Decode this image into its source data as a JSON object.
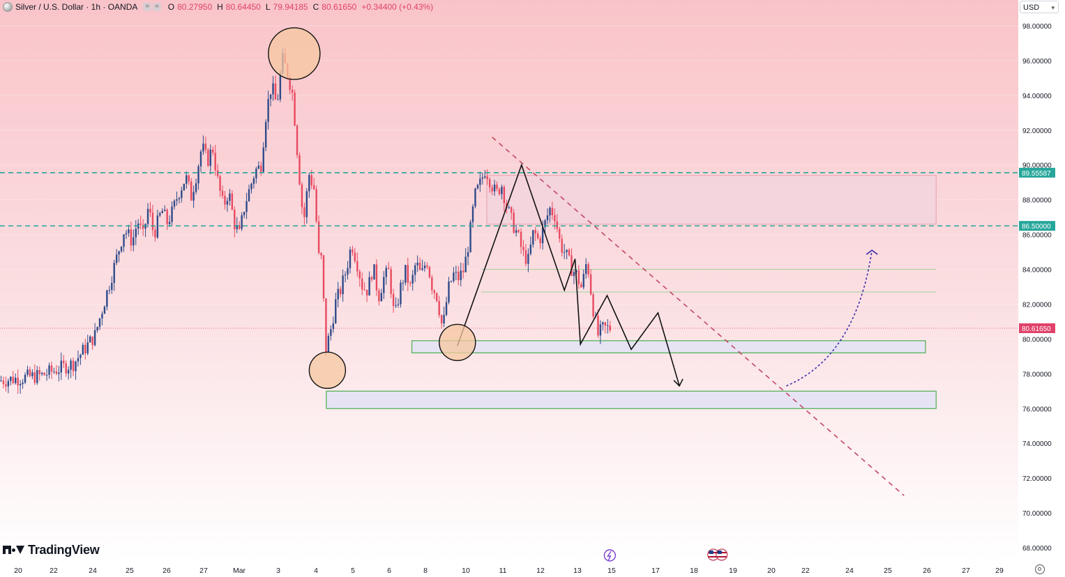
{
  "header": {
    "symbol": "Silver / U.S. Dollar · 1h · OANDA",
    "pill_a": "=",
    "pill_b": "≈",
    "open_label": "O",
    "open": "80.27950",
    "high_label": "H",
    "high": "80.64450",
    "low_label": "L",
    "low": "79.94185",
    "close_label": "C",
    "close": "80.61650",
    "change": "+0.34400 (+0.43%)"
  },
  "currency": "USD",
  "brand": "TradingView",
  "colors": {
    "candle_body": "#e8495f",
    "dash_level": "#26a69a",
    "trendline": "#c24865",
    "zone_stroke": "#4caf50",
    "arrow": "#3b2ca8",
    "circle_fill": "#f6c7a0"
  },
  "chart_data": {
    "type": "candlestick",
    "title": "Silver / U.S. Dollar · 1h · OANDA",
    "ylim": [
      67.5,
      99
    ],
    "yticks": [
      "98.00000",
      "96.00000",
      "94.00000",
      "92.00000",
      "90.00000",
      "88.00000",
      "86.00000",
      "84.00000",
      "82.00000",
      "80.00000",
      "78.00000",
      "76.00000",
      "74.00000",
      "72.00000",
      "70.00000",
      "68.00000"
    ],
    "x_labels": [
      "20",
      "22",
      "24",
      "25",
      "26",
      "27",
      "Mar",
      "3",
      "4",
      "5",
      "6",
      "8",
      "10",
      "11",
      "12",
      "13",
      "15",
      "17",
      "18",
      "19",
      "20",
      "22",
      "24",
      "25",
      "26",
      "27",
      "29"
    ],
    "price_path": [
      [
        0,
        77.6
      ],
      [
        8,
        77.9
      ],
      [
        14,
        78.6
      ],
      [
        18,
        80.2
      ],
      [
        22,
        84.6
      ],
      [
        23.5,
        86.3
      ],
      [
        25,
        85.6
      ],
      [
        26,
        86.8
      ],
      [
        27,
        85.9
      ],
      [
        28,
        87.6
      ],
      [
        29,
        86.0
      ],
      [
        30.5,
        87.4
      ],
      [
        31.5,
        86.7
      ],
      [
        32.5,
        87.3
      ],
      [
        33.5,
        88.3
      ],
      [
        35,
        89.3
      ],
      [
        36,
        88.2
      ],
      [
        37,
        89.5
      ],
      [
        38,
        91.1
      ],
      [
        39,
        90.2
      ],
      [
        40,
        91.0
      ],
      [
        41,
        89.0
      ],
      [
        42,
        87.6
      ],
      [
        43,
        88.5
      ],
      [
        44,
        86.7
      ],
      [
        45,
        86.0
      ],
      [
        46,
        87.7
      ],
      [
        47,
        88.7
      ],
      [
        48,
        89.7
      ],
      [
        49,
        89.9
      ],
      [
        50,
        93.0
      ],
      [
        51,
        94.6
      ],
      [
        52,
        93.4
      ],
      [
        53,
        96.1
      ],
      [
        54,
        95.3
      ],
      [
        55,
        94.0
      ],
      [
        56,
        90.1
      ],
      [
        57,
        86.6
      ],
      [
        58,
        89.5
      ],
      [
        59,
        88.6
      ],
      [
        60,
        84.0
      ],
      [
        60.5,
        85.0
      ],
      [
        61,
        79.2
      ],
      [
        62,
        80.4
      ],
      [
        63,
        82.1
      ],
      [
        64,
        82.9
      ],
      [
        65,
        84.0
      ],
      [
        66,
        85.5
      ],
      [
        67,
        84.4
      ],
      [
        68,
        83.0
      ],
      [
        69,
        82.8
      ],
      [
        70,
        84.2
      ],
      [
        71,
        82.4
      ],
      [
        72,
        83.5
      ],
      [
        73,
        83.9
      ],
      [
        74,
        81.1
      ],
      [
        75,
        82.8
      ],
      [
        76,
        83.9
      ],
      [
        77,
        82.9
      ],
      [
        78,
        84.4
      ],
      [
        79,
        83.6
      ],
      [
        80,
        84.6
      ],
      [
        81,
        83.1
      ],
      [
        82,
        82.4
      ],
      [
        83,
        80.5
      ],
      [
        84,
        82.8
      ],
      [
        85,
        83.7
      ],
      [
        86,
        83.5
      ],
      [
        87,
        84.0
      ],
      [
        88,
        85.8
      ],
      [
        89,
        88.2
      ],
      [
        90,
        88.9
      ],
      [
        91,
        89.8
      ],
      [
        92,
        89.0
      ],
      [
        93,
        88.3
      ],
      [
        94,
        88.9
      ],
      [
        95,
        87.6
      ],
      [
        96,
        86.7
      ],
      [
        97,
        86.0
      ],
      [
        98,
        84.9
      ],
      [
        99,
        84.5
      ],
      [
        100,
        86.2
      ],
      [
        101,
        85.6
      ],
      [
        102,
        86.5
      ],
      [
        103,
        87.5
      ],
      [
        104,
        87.1
      ],
      [
        105,
        85.4
      ],
      [
        106,
        84.9
      ],
      [
        107,
        84.1
      ],
      [
        108,
        83.7
      ],
      [
        109,
        82.9
      ],
      [
        110,
        84.6
      ],
      [
        111,
        82.0
      ],
      [
        112,
        80.2
      ],
      [
        113,
        80.6
      ],
      [
        114,
        80.62
      ]
    ],
    "levels": [
      {
        "name": "dashed-level-upper",
        "value": 89.55587,
        "label": "89.55587"
      },
      {
        "name": "dashed-level-lower",
        "value": 86.5,
        "label": "86.50000"
      }
    ],
    "last_price": {
      "value": 80.6165,
      "label": "80.61650"
    },
    "zones": [
      {
        "name": "resistance-zone",
        "x0": 91,
        "x1": 175,
        "y0": 86.6,
        "y1": 89.4
      },
      {
        "name": "support-zone-upper",
        "x0": 77,
        "x1": 173,
        "y0": 79.2,
        "y1": 79.9
      },
      {
        "name": "support-zone-lower",
        "x0": 61,
        "x1": 175,
        "y0": 76.0,
        "y1": 77.0
      }
    ],
    "thin_lines": [
      {
        "name": "thin-line-84",
        "x0": 90,
        "x1": 175,
        "value": 84.0
      },
      {
        "name": "thin-line-82-7",
        "x0": 90,
        "x1": 175,
        "value": 82.7
      }
    ],
    "circles": [
      {
        "name": "circle-peak",
        "x": 55,
        "value": 96.4
      },
      {
        "name": "circle-low-mar3",
        "x": 61.2,
        "value": 78.2
      },
      {
        "name": "circle-low-mar8",
        "x": 85.5,
        "value": 79.8
      }
    ],
    "trendline": {
      "x0": 92,
      "y0": 91.6,
      "x1": 169,
      "y1": 71.0
    },
    "wave_path": [
      [
        85.5,
        79.6
      ],
      [
        97.5,
        90.0
      ],
      [
        105.5,
        82.8
      ],
      [
        107.5,
        84.6
      ],
      [
        108.5,
        79.7
      ],
      [
        113.5,
        82.5
      ],
      [
        118,
        79.4
      ],
      [
        123,
        81.5
      ],
      [
        127,
        77.3
      ]
    ],
    "projection_arrow": {
      "x0": 147,
      "y0": 77.3,
      "cx": 160,
      "cy": 79,
      "x1": 163,
      "y1": 85.1
    },
    "events": [
      {
        "name": "lightning-event",
        "x": 108
      },
      {
        "name": "us-flag-event",
        "x": 125
      }
    ]
  }
}
